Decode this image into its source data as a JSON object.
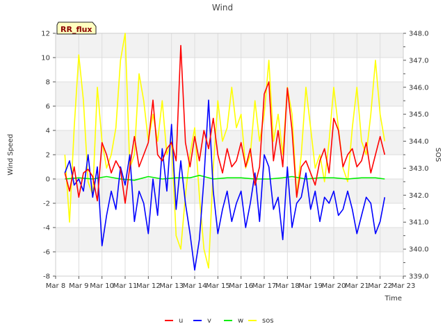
{
  "chart_data": {
    "type": "line",
    "title": "Wind",
    "badge": "RR_flux",
    "xlabel": "Time",
    "ylabel": "Wind Speed",
    "y2label": "SOS",
    "x_ticks": [
      "Mar 8",
      "Mar 9",
      "Mar 10",
      "Mar 11",
      "Mar 12",
      "Mar 13",
      "Mar 14",
      "Mar 15",
      "Mar 16",
      "Mar 17",
      "Mar 18",
      "Mar 19",
      "Mar 20",
      "Mar 21",
      "Mar 22",
      "Mar 23"
    ],
    "xlim": [
      8,
      23
    ],
    "ylim": [
      -8,
      12
    ],
    "y_ticks": [
      -8,
      -6,
      -4,
      -2,
      0,
      2,
      4,
      6,
      8,
      10,
      12
    ],
    "y2lim": [
      339.0,
      348.0
    ],
    "y2_ticks": [
      "339.0",
      "340.0",
      "341.0",
      "342.0",
      "343.0",
      "344.0",
      "345.0",
      "346.0",
      "347.0",
      "348.0"
    ],
    "grid": true,
    "bands": "alternating light gray",
    "legend_position": "bottom-center",
    "series": [
      {
        "name": "u",
        "color": "#ff0000",
        "axis": "left",
        "x": [
          8.4,
          8.6,
          8.8,
          9.0,
          9.2,
          9.4,
          9.6,
          9.8,
          10.0,
          10.2,
          10.4,
          10.6,
          10.8,
          11.0,
          11.2,
          11.4,
          11.6,
          11.8,
          12.0,
          12.2,
          12.4,
          12.6,
          12.8,
          13.0,
          13.2,
          13.4,
          13.6,
          13.8,
          14.0,
          14.2,
          14.4,
          14.6,
          14.8,
          15.0,
          15.2,
          15.4,
          15.6,
          15.8,
          16.0,
          16.2,
          16.4,
          16.6,
          16.8,
          17.0,
          17.2,
          17.4,
          17.6,
          17.8,
          18.0,
          18.2,
          18.4,
          18.6,
          18.8,
          19.0,
          19.2,
          19.4,
          19.6,
          19.8,
          20.0,
          20.2,
          20.4,
          20.6,
          20.8,
          21.0,
          21.2,
          21.4,
          21.6,
          21.8,
          22.0,
          22.2
        ],
        "values": [
          0.5,
          -1.0,
          1.0,
          -1.5,
          0.5,
          0.8,
          0.2,
          -1.8,
          3.0,
          2.0,
          0.5,
          1.5,
          0.8,
          -2.0,
          1.0,
          3.5,
          1.0,
          2.0,
          3.0,
          6.5,
          2.0,
          1.5,
          2.5,
          3.0,
          1.5,
          11.0,
          3.0,
          1.0,
          3.5,
          1.5,
          4.0,
          2.5,
          5.0,
          2.0,
          0.5,
          2.5,
          1.0,
          1.5,
          3.0,
          1.0,
          2.5,
          -0.5,
          1.0,
          7.0,
          8.0,
          1.5,
          4.0,
          1.0,
          7.5,
          4.0,
          -1.5,
          1.0,
          1.5,
          0.5,
          -0.5,
          1.5,
          2.5,
          0.5,
          5.0,
          4.0,
          1.0,
          2.0,
          2.5,
          1.0,
          1.5,
          3.0,
          0.5,
          2.0,
          3.5,
          2.0
        ]
      },
      {
        "name": "v",
        "color": "#0000ff",
        "axis": "left",
        "x": [
          8.4,
          8.6,
          8.8,
          9.0,
          9.2,
          9.4,
          9.6,
          9.8,
          10.0,
          10.2,
          10.4,
          10.6,
          10.8,
          11.0,
          11.2,
          11.4,
          11.6,
          11.8,
          12.0,
          12.2,
          12.4,
          12.6,
          12.8,
          13.0,
          13.2,
          13.4,
          13.6,
          13.8,
          14.0,
          14.2,
          14.4,
          14.6,
          14.8,
          15.0,
          15.2,
          15.4,
          15.6,
          15.8,
          16.0,
          16.2,
          16.4,
          16.6,
          16.8,
          17.0,
          17.2,
          17.4,
          17.6,
          17.8,
          18.0,
          18.2,
          18.4,
          18.6,
          18.8,
          19.0,
          19.2,
          19.4,
          19.6,
          19.8,
          20.0,
          20.2,
          20.4,
          20.6,
          20.8,
          21.0,
          21.2,
          21.4,
          21.6,
          21.8,
          22.0,
          22.2
        ],
        "values": [
          0.5,
          1.5,
          -0.5,
          0.0,
          -1.0,
          2.0,
          -1.5,
          1.0,
          -5.5,
          -3.0,
          -1.0,
          -2.5,
          1.0,
          -0.5,
          2.0,
          -3.5,
          -1.0,
          -2.0,
          -4.5,
          0.0,
          -3.0,
          2.5,
          -1.0,
          4.5,
          -2.5,
          1.5,
          -2.0,
          -4.5,
          -7.5,
          -5.0,
          0.0,
          6.5,
          -1.0,
          -4.5,
          -2.5,
          -1.0,
          -3.5,
          -2.0,
          -1.0,
          -4.0,
          -2.0,
          0.5,
          -3.5,
          2.0,
          1.0,
          -2.5,
          -1.5,
          -5.0,
          1.0,
          -4.0,
          -2.0,
          -1.5,
          0.5,
          -2.5,
          -1.0,
          -3.5,
          -1.5,
          -2.0,
          -1.0,
          -3.0,
          -2.5,
          -1.0,
          -2.5,
          -4.5,
          -3.0,
          -1.5,
          -2.0,
          -4.5,
          -3.5,
          -1.5
        ]
      },
      {
        "name": "w",
        "color": "#00ee00",
        "axis": "left",
        "x": [
          8.4,
          9.0,
          9.6,
          10.2,
          10.8,
          11.4,
          12.0,
          12.6,
          13.2,
          13.8,
          14.2,
          14.8,
          15.4,
          16.0,
          16.6,
          17.2,
          17.8,
          18.2,
          18.8,
          19.4,
          20.0,
          20.6,
          21.2,
          21.8,
          22.2
        ],
        "values": [
          0.0,
          0.1,
          0.0,
          0.2,
          0.0,
          -0.1,
          0.2,
          0.0,
          0.1,
          0.1,
          0.3,
          0.0,
          0.1,
          0.1,
          0.0,
          0.0,
          0.1,
          0.2,
          0.0,
          0.1,
          0.1,
          0.0,
          0.1,
          0.1,
          0.0
        ]
      },
      {
        "name": "sos",
        "color": "#ffff00",
        "axis": "right",
        "x": [
          8.4,
          8.6,
          8.8,
          9.0,
          9.2,
          9.4,
          9.6,
          9.8,
          10.0,
          10.2,
          10.4,
          10.6,
          10.8,
          11.0,
          11.2,
          11.4,
          11.6,
          11.8,
          12.0,
          12.2,
          12.4,
          12.6,
          12.8,
          13.0,
          13.2,
          13.4,
          13.6,
          13.8,
          14.0,
          14.2,
          14.4,
          14.6,
          14.8,
          15.0,
          15.2,
          15.4,
          15.6,
          15.8,
          16.0,
          16.2,
          16.4,
          16.6,
          16.8,
          17.0,
          17.2,
          17.4,
          17.6,
          17.8,
          18.0,
          18.2,
          18.4,
          18.6,
          18.8,
          19.0,
          19.2,
          19.4,
          19.6,
          19.8,
          20.0,
          20.2,
          20.4,
          20.6,
          20.8,
          21.0,
          21.2,
          21.4,
          21.6,
          21.8,
          22.0,
          22.2
        ],
        "values": [
          343.5,
          341.0,
          344.5,
          347.2,
          345.5,
          342.5,
          342.0,
          346.0,
          344.0,
          343.0,
          343.5,
          344.5,
          347.0,
          348.0,
          343.0,
          343.5,
          346.5,
          345.5,
          344.0,
          345.0,
          344.0,
          345.5,
          343.5,
          344.0,
          340.5,
          340.0,
          342.0,
          343.5,
          344.5,
          342.0,
          340.0,
          339.3,
          343.0,
          345.5,
          344.0,
          344.5,
          346.0,
          344.5,
          345.0,
          343.0,
          343.5,
          345.5,
          344.0,
          345.0,
          347.0,
          344.0,
          345.0,
          343.5,
          346.0,
          345.0,
          342.0,
          343.5,
          346.0,
          344.5,
          343.0,
          343.5,
          342.5,
          344.0,
          346.0,
          344.5,
          343.0,
          342.5,
          344.5,
          346.0,
          344.0,
          343.5,
          345.0,
          347.0,
          345.0,
          344.0
        ]
      }
    ]
  }
}
